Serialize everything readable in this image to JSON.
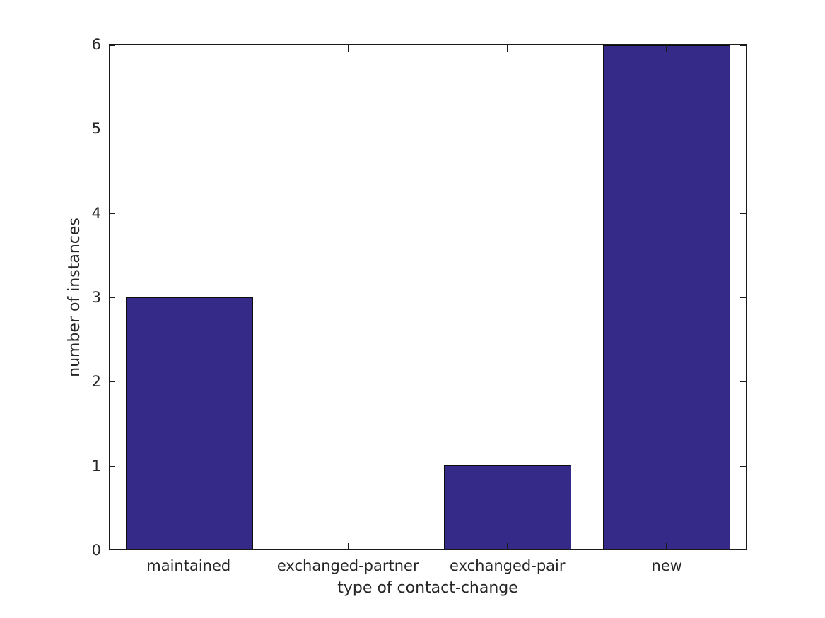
{
  "chart_data": {
    "type": "bar",
    "title": "",
    "xlabel": "type of contact-change",
    "ylabel": "number of instances",
    "categories": [
      "maintained",
      "exchanged-partner",
      "exchanged-pair",
      "new"
    ],
    "values": [
      3,
      0,
      1,
      6
    ],
    "ylim": [
      0,
      6
    ],
    "yticks": [
      0,
      1,
      2,
      3,
      4,
      5,
      6
    ],
    "bar_width_fraction": 0.8,
    "grid": false,
    "legend": null,
    "style": {
      "bar_color": "#352a87",
      "bar_edge_color": "#0d0d0d",
      "axis_color": "#1a1a1a",
      "text_color": "#262626",
      "background_color": "#ffffff",
      "ticks": "inward, mirrored on all four sides"
    }
  }
}
